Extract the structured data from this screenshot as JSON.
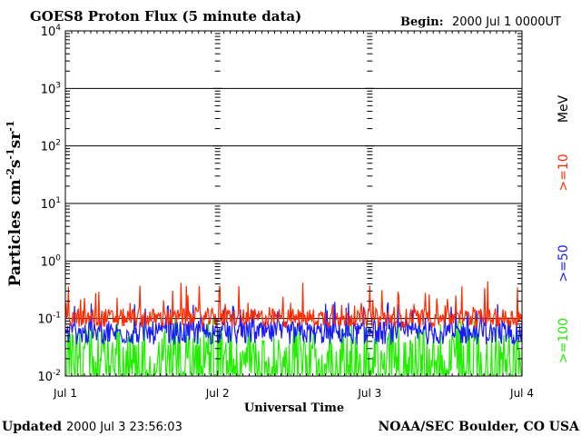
{
  "chart_data": {
    "type": "line",
    "title": "GOES8 Proton Flux (5 minute data)",
    "begin_label": "Begin:",
    "begin_value": "2000 Jul 1 0000UT",
    "ylabel_base": "Particles cm",
    "ylabel_exp1": "-2",
    "ylabel_s": "s",
    "ylabel_exp2": "-1",
    "ylabel_sr": "sr",
    "ylabel_exp3": "-1",
    "xlabel": "Universal Time",
    "y_scale": "log",
    "ylim": [
      0.01,
      10000
    ],
    "y_ticks": [
      {
        "base": "10",
        "exp": "4",
        "value": 10000
      },
      {
        "base": "10",
        "exp": "3",
        "value": 1000
      },
      {
        "base": "10",
        "exp": "2",
        "value": 100
      },
      {
        "base": "10",
        "exp": "1",
        "value": 10
      },
      {
        "base": "10",
        "exp": "0",
        "value": 1
      },
      {
        "base": "10",
        "exp": "-1",
        "value": 0.1
      },
      {
        "base": "10",
        "exp": "-2",
        "value": 0.01
      }
    ],
    "x_ticks": [
      "Jul 1",
      "Jul 2",
      "Jul 3",
      "Jul 4"
    ],
    "grid": true,
    "series": [
      {
        "name": ">=10",
        "color": "#ff2a00",
        "typical_range": [
          0.07,
          0.15
        ],
        "peak": 0.45
      },
      {
        "name": ">=50",
        "color": "#1a1aff",
        "typical_range": [
          0.035,
          0.09
        ],
        "peak": 0.2
      },
      {
        "name": ">=100",
        "color": "#22ee00",
        "typical_range": [
          0.01,
          0.07
        ],
        "peak": 0.1
      }
    ],
    "legend_unit": "MeV",
    "legend_position": "right"
  },
  "footer": {
    "updated_label": "Updated",
    "updated_value": "2000 Jul  3 23:56:03",
    "source": "NOAA/SEC Boulder, CO USA"
  }
}
